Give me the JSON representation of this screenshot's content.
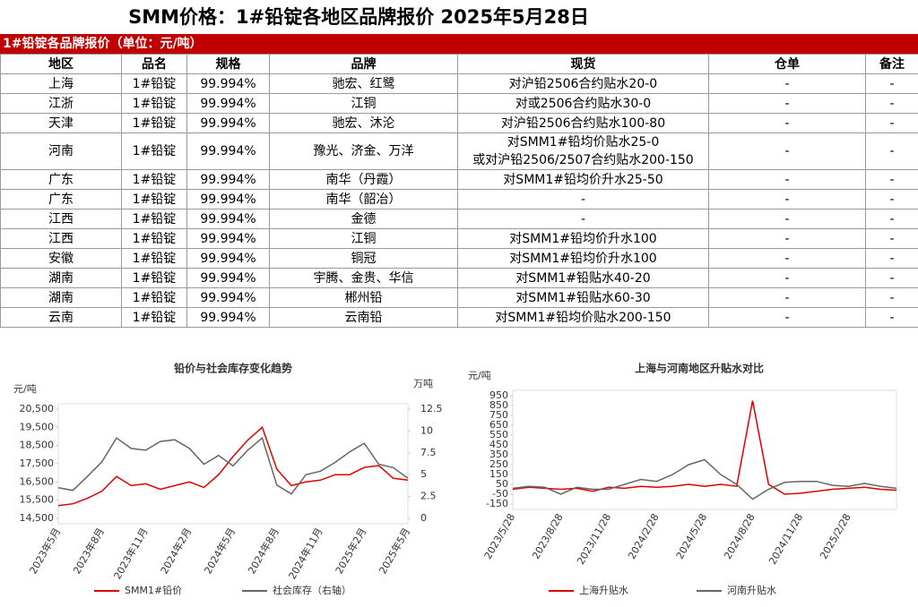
{
  "title": "SMM价格：1#铅锭各地区品牌报价 2025年5月28日",
  "table": {
    "title": "1#铅锭各品牌报价（单位：元/吨）",
    "columns": [
      "地区",
      "品名",
      "规格",
      "品牌",
      "现货",
      "仓单",
      "备注"
    ],
    "rows": [
      [
        "上海",
        "1#铅锭",
        "99.994%",
        "驰宏、红鹭",
        "对沪铅2506合约贴水20-0",
        "-",
        "-"
      ],
      [
        "江浙",
        "1#铅锭",
        "99.994%",
        "江铜",
        "对或2506合约贴水30-0",
        "-",
        "-"
      ],
      [
        "天津",
        "1#铅锭",
        "99.994%",
        "驰宏、沐沦",
        "对沪铅2506合约贴水100-80",
        "-",
        "-"
      ],
      [
        "河南",
        "1#铅锭",
        "99.994%",
        "豫光、济金、万洋",
        "对SMM1#铅均价贴水25-0\n或对沪铅2506/2507合约贴水200-150",
        "-",
        "-"
      ],
      [
        "广东",
        "1#铅锭",
        "99.994%",
        "南华（丹霞）",
        "对SMM1#铅均价升水25-50",
        "-",
        "-"
      ],
      [
        "广东",
        "1#铅锭",
        "99.994%",
        "南华（韶冶）",
        "-",
        "-",
        "-"
      ],
      [
        "江西",
        "1#铅锭",
        "99.994%",
        "金德",
        "-",
        "-",
        "-"
      ],
      [
        "江西",
        "1#铅锭",
        "99.994%",
        "江铜",
        "对SMM1#铅均价升水100",
        "-",
        "-"
      ],
      [
        "安徽",
        "1#铅锭",
        "99.994%",
        "铜冠",
        "对SMM1#铅均价升水100",
        "-",
        "-"
      ],
      [
        "湖南",
        "1#铅锭",
        "99.994%",
        "宇腾、金贵、华信",
        "对SMM1#铅贴水40-20",
        "-",
        "-"
      ],
      [
        "湖南",
        "1#铅锭",
        "99.994%",
        "郴州铅",
        "对SMM1#铅贴水60-30",
        "-",
        "-"
      ],
      [
        "云南",
        "1#铅锭",
        "99.994%",
        "云南铅",
        "对SMM1#铅均价贴水200-150",
        "-",
        "-"
      ]
    ]
  },
  "chart_data": [
    {
      "type": "line",
      "title": "铅价与社会库存变化趋势",
      "ylabel": "元/吨",
      "y2label": "万吨",
      "categories": [
        "2023年5月",
        null,
        null,
        "2023年8月",
        null,
        null,
        "2023年11月",
        null,
        null,
        "2024年2月",
        null,
        null,
        "2024年5月",
        null,
        null,
        "2024年8月",
        null,
        null,
        "2024年11月",
        null,
        null,
        "2025年2月",
        null,
        null,
        "2025年5月"
      ],
      "ylim": [
        14500,
        20500
      ],
      "yticks": [
        {
          "value": 14500,
          "label": "14,500"
        },
        {
          "value": 15500,
          "label": "15,500"
        },
        {
          "value": 16500,
          "label": "16,500"
        },
        {
          "value": 17500,
          "label": "17,500"
        },
        {
          "value": 18500,
          "label": "18,500"
        },
        {
          "value": 19500,
          "label": "19,500"
        },
        {
          "value": 20500,
          "label": "20,500"
        }
      ],
      "y2lim": [
        0,
        12.5
      ],
      "y2ticks": [
        0,
        2.5,
        5,
        7.5,
        10,
        12.5
      ],
      "grid": false,
      "legend": "bottom",
      "series": [
        {
          "name": "SMM1#铅价",
          "color": "#e00000",
          "values": [
            15200,
            15300,
            15600,
            16000,
            16800,
            16300,
            16400,
            16100,
            16300,
            16500,
            16200,
            16900,
            17900,
            18800,
            19500,
            17200,
            16300,
            16500,
            16600,
            16900,
            16900,
            17300,
            17400,
            16700,
            16600
          ]
        },
        {
          "name": "社会库存（右轴）",
          "color": "#666666",
          "axis": "y2",
          "values": [
            3.5,
            3.2,
            4.8,
            6.5,
            9.2,
            8.0,
            7.8,
            8.8,
            9.0,
            8.0,
            6.2,
            7.2,
            6.0,
            7.8,
            9.2,
            3.8,
            2.8,
            5.0,
            5.4,
            6.4,
            7.6,
            8.6,
            6.2,
            5.8,
            4.6
          ]
        }
      ]
    },
    {
      "type": "line",
      "title": "上海与河南地区升贴水对比",
      "ylabel": "元/吨",
      "categories": [
        "2023/5/28",
        null,
        null,
        "2023/8/28",
        null,
        null,
        "2023/11/28",
        null,
        null,
        "2024/2/28",
        null,
        null,
        "2024/5/28",
        null,
        null,
        "2024/8/28",
        null,
        null,
        "2024/11/28",
        null,
        null,
        "2025/2/28",
        null,
        null,
        null
      ],
      "ylim": [
        -150,
        950
      ],
      "yticks": [
        -150,
        -50,
        50,
        150,
        250,
        350,
        450,
        550,
        650,
        750,
        850,
        950
      ],
      "grid": false,
      "legend": "bottom",
      "series": [
        {
          "name": "上海升贴水",
          "color": "#e00000",
          "values": [
            0,
            20,
            10,
            0,
            10,
            -20,
            20,
            10,
            30,
            20,
            30,
            50,
            30,
            50,
            30,
            900,
            50,
            -50,
            -40,
            -20,
            0,
            10,
            20,
            0,
            -10
          ]
        },
        {
          "name": "河南升贴水",
          "color": "#666666",
          "values": [
            10,
            30,
            20,
            -50,
            20,
            0,
            0,
            50,
            100,
            80,
            150,
            250,
            300,
            150,
            50,
            -100,
            0,
            70,
            80,
            80,
            40,
            30,
            60,
            30,
            10
          ]
        }
      ]
    }
  ]
}
